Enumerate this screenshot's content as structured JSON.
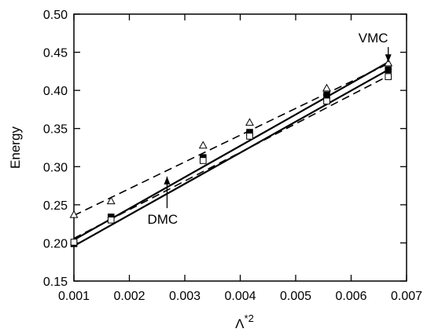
{
  "chart_data": {
    "type": "line",
    "title": "",
    "xlabel": "Λ*²",
    "xlabel_base": "Λ",
    "xlabel_sup": "*2",
    "ylabel": "Energy",
    "xlim": [
      0.001,
      0.007
    ],
    "ylim": [
      0.15,
      0.5
    ],
    "xticks": [
      "0.001",
      "0.002",
      "0.003",
      "0.004",
      "0.005",
      "0.006",
      "0.007"
    ],
    "yticks": [
      "0.15",
      "0.20",
      "0.25",
      "0.30",
      "0.35",
      "0.40",
      "0.45",
      "0.50"
    ],
    "grid": false,
    "series": [
      {
        "marker": "open-triangle",
        "x": [
          0.001,
          0.00167,
          0.00333,
          0.00417,
          0.00556,
          0.00667
        ],
        "y": [
          0.237,
          0.255,
          0.328,
          0.358,
          0.403,
          0.436
        ]
      },
      {
        "marker": "filled-square",
        "x": [
          0.001,
          0.00167,
          0.00333,
          0.00417,
          0.00556,
          0.00667
        ],
        "y": [
          0.199,
          0.234,
          0.312,
          0.345,
          0.394,
          0.427
        ]
      },
      {
        "marker": "open-square",
        "x": [
          0.001,
          0.00167,
          0.00333,
          0.00417,
          0.00556,
          0.00667
        ],
        "y": [
          0.201,
          0.23,
          0.308,
          0.34,
          0.386,
          0.418
        ]
      }
    ],
    "fit_lines": [
      {
        "style": "dashed",
        "x": [
          0.001,
          0.00667
        ],
        "y": [
          0.236,
          0.435
        ]
      },
      {
        "style": "dashed",
        "x": [
          0.001,
          0.00667
        ],
        "y": [
          0.206,
          0.419
        ]
      },
      {
        "style": "solid",
        "x": [
          0.001,
          0.00667
        ],
        "y": [
          0.204,
          0.437
        ]
      },
      {
        "style": "solid",
        "x": [
          0.001,
          0.00667
        ],
        "y": [
          0.196,
          0.427
        ]
      }
    ],
    "annotations": [
      {
        "text": "VMC",
        "x": 0.0064,
        "y": 0.463,
        "arrow_to": [
          0.00667,
          0.437
        ]
      },
      {
        "text": "DMC",
        "x": 0.0026,
        "y": 0.225,
        "arrow_to": [
          0.00268,
          0.287
        ]
      }
    ]
  }
}
